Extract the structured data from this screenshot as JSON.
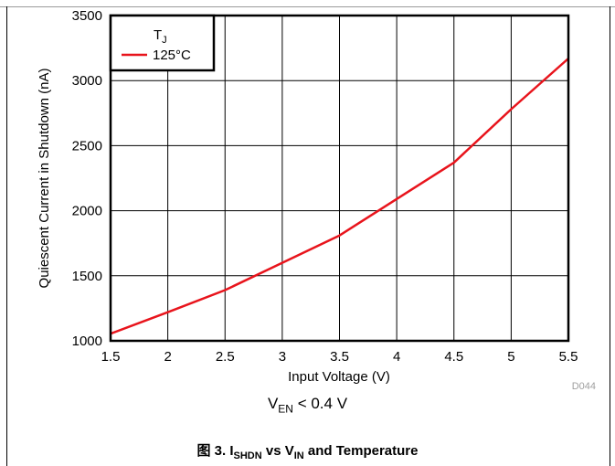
{
  "chart_data": {
    "type": "line",
    "ylabel": "Quiescent Current in Shutdown (nA)",
    "xlabel": "Input Voltage (V)",
    "xlim": [
      1.5,
      5.5
    ],
    "ylim": [
      1000,
      3500
    ],
    "xticks": [
      "1.5",
      "2",
      "2.5",
      "3",
      "3.5",
      "4",
      "4.5",
      "5",
      "5.5"
    ],
    "yticks": [
      "1000",
      "1500",
      "2000",
      "2500",
      "3000",
      "3500"
    ],
    "grid": true,
    "legend": {
      "title_main": "T",
      "title_sub": "J",
      "placement": "top-left"
    },
    "series": [
      {
        "name": "125°C",
        "color": "#e8141c",
        "x": [
          1.5,
          2.0,
          2.5,
          3.0,
          3.5,
          4.0,
          4.5,
          5.0,
          5.5
        ],
        "y": [
          1055,
          1220,
          1390,
          1600,
          1810,
          2090,
          2370,
          2780,
          3170
        ]
      }
    ],
    "source_id": "D044"
  },
  "annotation": {
    "v_main": "V",
    "v_sub": "EN",
    "v_rest": " < 0.4 V"
  },
  "caption": {
    "prefix": "图 3. I",
    "sub1": "SHDN",
    "mid": " vs V",
    "sub2": "IN",
    "suffix": " and Temperature"
  }
}
